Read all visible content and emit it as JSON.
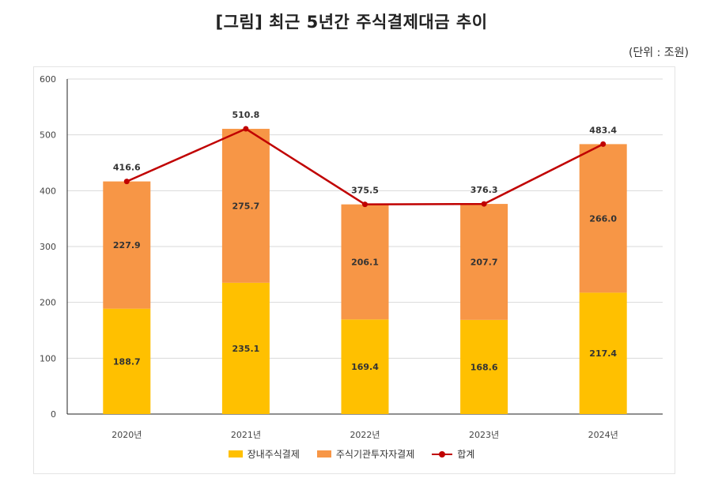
{
  "title": "[그림] 최근 5년간 주식결제대금 추이",
  "unit": "(단위 : 조원)",
  "colors": {
    "domestic": "#FFC000",
    "institutional": "#F79646",
    "total": "#C00000"
  },
  "chart_data": {
    "type": "bar",
    "stacked": true,
    "categories": [
      "2020년",
      "2021년",
      "2022년",
      "2023년",
      "2024년"
    ],
    "series": [
      {
        "name": "장내주식결제",
        "type": "bar",
        "values": [
          188.7,
          235.1,
          169.4,
          168.6,
          217.4
        ]
      },
      {
        "name": "주식기관투자자결제",
        "type": "bar",
        "values": [
          227.9,
          275.7,
          206.1,
          207.7,
          266.0
        ]
      },
      {
        "name": "합계",
        "type": "line",
        "values": [
          416.6,
          510.8,
          375.5,
          376.3,
          483.4
        ]
      }
    ],
    "ylim": [
      0,
      600
    ],
    "yticks": [
      0,
      100,
      200,
      300,
      400,
      500,
      600
    ],
    "grid": true,
    "legend": "bottom"
  }
}
